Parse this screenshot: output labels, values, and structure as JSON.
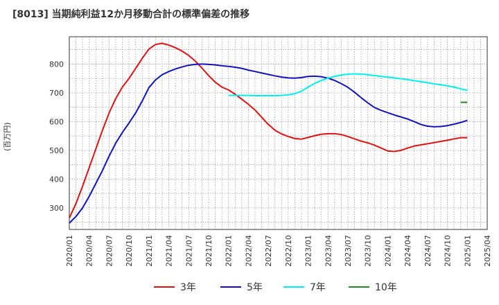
{
  "chart_data": {
    "type": "line",
    "title": "[8013]  当期純利益12か月移動合計の標準偏差の推移",
    "ylabel": "(百万円)",
    "xlabel": "",
    "ylim": [
      225,
      895
    ],
    "yticks": [
      300,
      400,
      500,
      600,
      700,
      800
    ],
    "xlim": [
      "2020-01",
      "2025-04"
    ],
    "xticks": [
      "2020/01",
      "2020/04",
      "2020/07",
      "2020/10",
      "2021/01",
      "2021/04",
      "2021/07",
      "2021/10",
      "2022/01",
      "2022/04",
      "2022/07",
      "2022/10",
      "2023/01",
      "2023/04",
      "2023/07",
      "2023/10",
      "2024/01",
      "2024/04",
      "2024/07",
      "2024/10",
      "2025/01",
      "2025/04"
    ],
    "grid": true,
    "legend_position": "bottom",
    "series": [
      {
        "name": "3年",
        "color": "#dd1111",
        "points": [
          [
            "2020-01",
            265
          ],
          [
            "2020-02",
            315
          ],
          [
            "2020-03",
            375
          ],
          [
            "2020-04",
            440
          ],
          [
            "2020-05",
            505
          ],
          [
            "2020-06",
            570
          ],
          [
            "2020-07",
            630
          ],
          [
            "2020-08",
            680
          ],
          [
            "2020-09",
            720
          ],
          [
            "2020-10",
            750
          ],
          [
            "2020-11",
            785
          ],
          [
            "2020-12",
            820
          ],
          [
            "2021-01",
            852
          ],
          [
            "2021-02",
            868
          ],
          [
            "2021-03",
            872
          ],
          [
            "2021-04",
            866
          ],
          [
            "2021-05",
            857
          ],
          [
            "2021-06",
            845
          ],
          [
            "2021-07",
            830
          ],
          [
            "2021-08",
            810
          ],
          [
            "2021-09",
            786
          ],
          [
            "2021-10",
            760
          ],
          [
            "2021-11",
            737
          ],
          [
            "2021-12",
            720
          ],
          [
            "2022-01",
            710
          ],
          [
            "2022-02",
            695
          ],
          [
            "2022-03",
            678
          ],
          [
            "2022-04",
            660
          ],
          [
            "2022-05",
            640
          ],
          [
            "2022-06",
            615
          ],
          [
            "2022-07",
            590
          ],
          [
            "2022-08",
            570
          ],
          [
            "2022-09",
            557
          ],
          [
            "2022-10",
            548
          ],
          [
            "2022-11",
            541
          ],
          [
            "2022-12",
            539
          ],
          [
            "2023-01",
            545
          ],
          [
            "2023-02",
            551
          ],
          [
            "2023-03",
            556
          ],
          [
            "2023-04",
            558
          ],
          [
            "2023-05",
            558
          ],
          [
            "2023-06",
            555
          ],
          [
            "2023-07",
            548
          ],
          [
            "2023-08",
            540
          ],
          [
            "2023-09",
            532
          ],
          [
            "2023-10",
            526
          ],
          [
            "2023-11",
            518
          ],
          [
            "2023-12",
            508
          ],
          [
            "2024-01",
            498
          ],
          [
            "2024-02",
            496
          ],
          [
            "2024-03",
            500
          ],
          [
            "2024-04",
            508
          ],
          [
            "2024-05",
            515
          ],
          [
            "2024-06",
            519
          ],
          [
            "2024-07",
            523
          ],
          [
            "2024-08",
            527
          ],
          [
            "2024-09",
            531
          ],
          [
            "2024-10",
            535
          ],
          [
            "2024-11",
            540
          ],
          [
            "2024-12",
            544
          ],
          [
            "2025-01",
            544
          ]
        ]
      },
      {
        "name": "5年",
        "color": "#1111bb",
        "points": [
          [
            "2020-01",
            247
          ],
          [
            "2020-02",
            270
          ],
          [
            "2020-03",
            300
          ],
          [
            "2020-04",
            340
          ],
          [
            "2020-05",
            385
          ],
          [
            "2020-06",
            430
          ],
          [
            "2020-07",
            480
          ],
          [
            "2020-08",
            525
          ],
          [
            "2020-09",
            562
          ],
          [
            "2020-10",
            595
          ],
          [
            "2020-11",
            630
          ],
          [
            "2020-12",
            672
          ],
          [
            "2021-01",
            718
          ],
          [
            "2021-02",
            745
          ],
          [
            "2021-03",
            763
          ],
          [
            "2021-04",
            774
          ],
          [
            "2021-05",
            783
          ],
          [
            "2021-06",
            790
          ],
          [
            "2021-07",
            796
          ],
          [
            "2021-08",
            799
          ],
          [
            "2021-09",
            800
          ],
          [
            "2021-10",
            799
          ],
          [
            "2021-11",
            797
          ],
          [
            "2021-12",
            794
          ],
          [
            "2022-01",
            792
          ],
          [
            "2022-02",
            789
          ],
          [
            "2022-03",
            785
          ],
          [
            "2022-04",
            779
          ],
          [
            "2022-05",
            774
          ],
          [
            "2022-06",
            769
          ],
          [
            "2022-07",
            764
          ],
          [
            "2022-08",
            759
          ],
          [
            "2022-09",
            755
          ],
          [
            "2022-10",
            752
          ],
          [
            "2022-11",
            751
          ],
          [
            "2022-12",
            753
          ],
          [
            "2023-01",
            757
          ],
          [
            "2023-02",
            758
          ],
          [
            "2023-03",
            756
          ],
          [
            "2023-04",
            751
          ],
          [
            "2023-05",
            743
          ],
          [
            "2023-06",
            732
          ],
          [
            "2023-07",
            719
          ],
          [
            "2023-08",
            702
          ],
          [
            "2023-09",
            683
          ],
          [
            "2023-10",
            665
          ],
          [
            "2023-11",
            649
          ],
          [
            "2023-12",
            639
          ],
          [
            "2024-01",
            631
          ],
          [
            "2024-02",
            623
          ],
          [
            "2024-03",
            616
          ],
          [
            "2024-04",
            609
          ],
          [
            "2024-05",
            600
          ],
          [
            "2024-06",
            590
          ],
          [
            "2024-07",
            584
          ],
          [
            "2024-08",
            582
          ],
          [
            "2024-09",
            583
          ],
          [
            "2024-10",
            586
          ],
          [
            "2024-11",
            591
          ],
          [
            "2024-12",
            597
          ],
          [
            "2025-01",
            604
          ]
        ]
      },
      {
        "name": "7年",
        "color": "#00eeee",
        "points": [
          [
            "2022-01",
            691
          ],
          [
            "2022-02",
            691
          ],
          [
            "2022-03",
            691
          ],
          [
            "2022-04",
            691
          ],
          [
            "2022-05",
            690
          ],
          [
            "2022-06",
            690
          ],
          [
            "2022-07",
            690
          ],
          [
            "2022-08",
            690
          ],
          [
            "2022-09",
            691
          ],
          [
            "2022-10",
            693
          ],
          [
            "2022-11",
            697
          ],
          [
            "2022-12",
            706
          ],
          [
            "2023-01",
            720
          ],
          [
            "2023-02",
            733
          ],
          [
            "2023-03",
            743
          ],
          [
            "2023-04",
            751
          ],
          [
            "2023-05",
            757
          ],
          [
            "2023-06",
            762
          ],
          [
            "2023-07",
            765
          ],
          [
            "2023-08",
            766
          ],
          [
            "2023-09",
            765
          ],
          [
            "2023-10",
            763
          ],
          [
            "2023-11",
            760
          ],
          [
            "2023-12",
            757
          ],
          [
            "2024-01",
            755
          ],
          [
            "2024-02",
            752
          ],
          [
            "2024-03",
            749
          ],
          [
            "2024-04",
            746
          ],
          [
            "2024-05",
            742
          ],
          [
            "2024-06",
            739
          ],
          [
            "2024-07",
            735
          ],
          [
            "2024-08",
            731
          ],
          [
            "2024-09",
            728
          ],
          [
            "2024-10",
            724
          ],
          [
            "2024-11",
            720
          ],
          [
            "2024-12",
            714
          ],
          [
            "2025-01",
            709
          ]
        ]
      },
      {
        "name": "10年",
        "color": "#228822",
        "points": [
          [
            "2024-12",
            667
          ],
          [
            "2025-01",
            667
          ]
        ]
      }
    ]
  }
}
